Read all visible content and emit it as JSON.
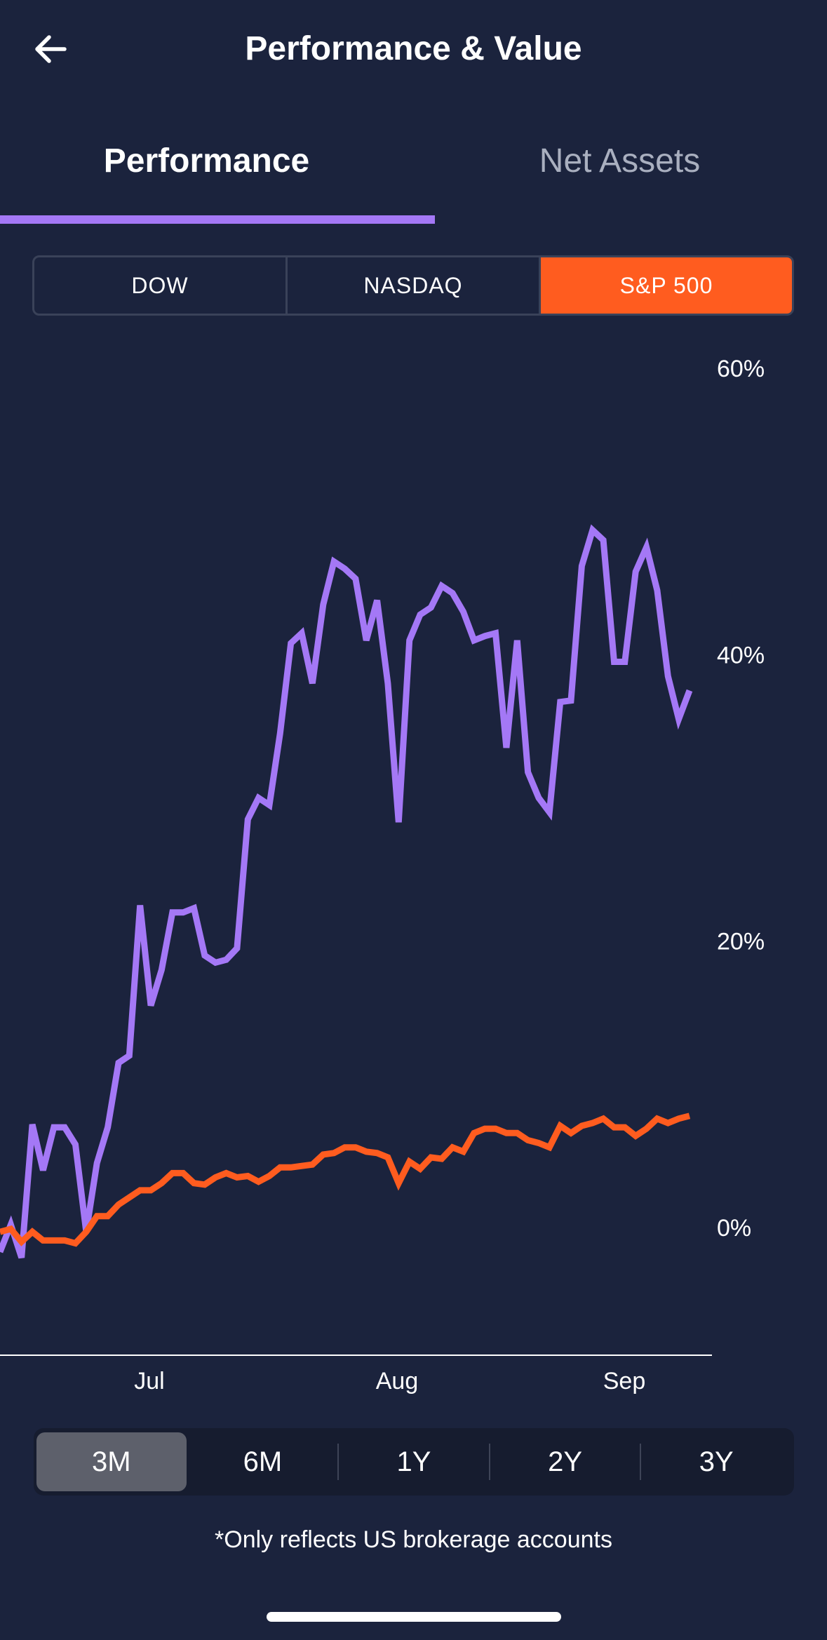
{
  "header": {
    "title": "Performance & Value",
    "back_icon": "arrow-left-icon"
  },
  "tabs": [
    {
      "label": "Performance",
      "active": true
    },
    {
      "label": "Net Assets",
      "active": false
    }
  ],
  "benchmarks": [
    {
      "label": "DOW",
      "active": false
    },
    {
      "label": "NASDAQ",
      "active": false
    },
    {
      "label": "S&P 500",
      "active": true
    }
  ],
  "colors": {
    "portfolio": "#a478f6",
    "benchmark": "#ff5c1f",
    "background": "#1b233d"
  },
  "chart_data": {
    "type": "line",
    "y_ticks": [
      "60%",
      "40%",
      "20%",
      "0%"
    ],
    "ylim": [
      -9,
      60
    ],
    "x_ticks": [
      "Jul",
      "Aug",
      "Sep"
    ],
    "grid": false,
    "series": [
      {
        "color": "#a478f6",
        "values": [
          -1.7,
          0.2,
          -2.1,
          7.2,
          4,
          7,
          7,
          5.8,
          -0.3,
          4.5,
          7,
          11.5,
          12,
          22.5,
          15.5,
          18,
          22,
          22,
          22.3,
          19,
          18.5,
          18.7,
          19.5,
          28.5,
          30,
          29.5,
          34.5,
          40.8,
          41.5,
          38,
          43.5,
          46.5,
          46,
          45.3,
          41,
          43.8,
          38,
          28.3,
          41,
          42.8,
          43.3,
          44.8,
          44.3,
          43,
          41,
          41.3,
          41.5,
          33.5,
          41,
          31.8,
          30,
          29,
          36.7,
          36.8,
          46.2,
          48.7,
          48,
          39.5,
          39.5,
          45.8,
          47.5,
          44.5,
          38.5,
          35.5,
          37.5
        ]
      },
      {
        "color": "#ff5c1f",
        "values": [
          -0.3,
          -0.1,
          -1,
          -0.3,
          -0.9,
          -0.9,
          -0.9,
          -1.1,
          -0.3,
          0.8,
          0.8,
          1.6,
          2.1,
          2.6,
          2.6,
          3.1,
          3.8,
          3.8,
          3.1,
          3,
          3.5,
          3.8,
          3.5,
          3.6,
          3.2,
          3.6,
          4.2,
          4.2,
          4.3,
          4.4,
          5.1,
          5.2,
          5.6,
          5.6,
          5.3,
          5.2,
          4.9,
          3.1,
          4.6,
          4.1,
          4.9,
          4.8,
          5.6,
          5.3,
          6.6,
          6.9,
          6.9,
          6.6,
          6.6,
          6.1,
          5.9,
          5.6,
          7.1,
          6.6,
          7.1,
          7.3,
          7.6,
          7,
          7,
          6.4,
          6.9,
          7.6,
          7.3,
          7.6,
          7.8
        ]
      }
    ]
  },
  "range_options": [
    {
      "label": "3M",
      "active": true
    },
    {
      "label": "6M",
      "active": false
    },
    {
      "label": "1Y",
      "active": false
    },
    {
      "label": "2Y",
      "active": false
    },
    {
      "label": "3Y",
      "active": false
    }
  ],
  "footnote": "*Only reflects US brokerage accounts"
}
